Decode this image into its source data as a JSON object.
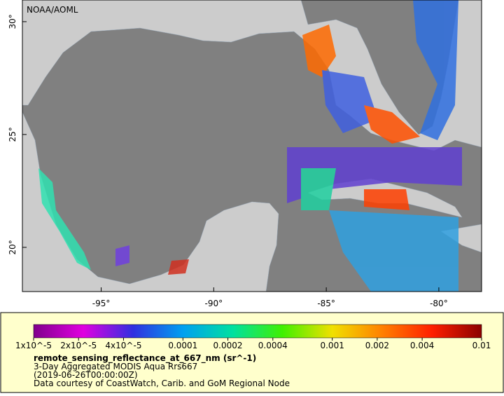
{
  "map": {
    "watermark": "NOAA/AOML",
    "lon_range": [
      -98.5,
      -78.1
    ],
    "lat_range": [
      18.04,
      30.96
    ],
    "lon_ticks": [
      {
        "value": -95,
        "label": "-95°"
      },
      {
        "value": -90,
        "label": "-90°"
      },
      {
        "value": -85,
        "label": "-85°"
      },
      {
        "value": -80,
        "label": "-80°"
      }
    ],
    "lat_ticks": [
      {
        "value": 30,
        "label": "30°"
      },
      {
        "value": 25,
        "label": "25°"
      },
      {
        "value": 20,
        "label": "20°"
      }
    ]
  },
  "legend": {
    "colorbar": {
      "range": [
        1e-05,
        0.01
      ],
      "log_scale": true,
      "colors": [
        "#80008c",
        "#e000e0",
        "#3030e0",
        "#00a0f0",
        "#00e0a0",
        "#40f000",
        "#f0e000",
        "#ff8000",
        "#ff2000",
        "#8c0000"
      ],
      "ticks": [
        {
          "value": 1e-05,
          "label": "1x10^-5"
        },
        {
          "value": 2e-05,
          "label": "2x10^-5"
        },
        {
          "value": 4e-05,
          "label": "4x10^-5"
        },
        0.0001,
        0.0002,
        0.0004,
        0.001,
        0.002,
        0.004,
        0.01
      ]
    },
    "variable": "remote_sensing_reflectance_at_667_nm (sr^-1)",
    "lines": [
      "3-Day Aggregated MODIS Aqua Rrs667",
      "(2019-06-26T00:00:00Z)",
      "Data courtesy of CoastWatch, Carib. and GoM Regional Node"
    ]
  }
}
